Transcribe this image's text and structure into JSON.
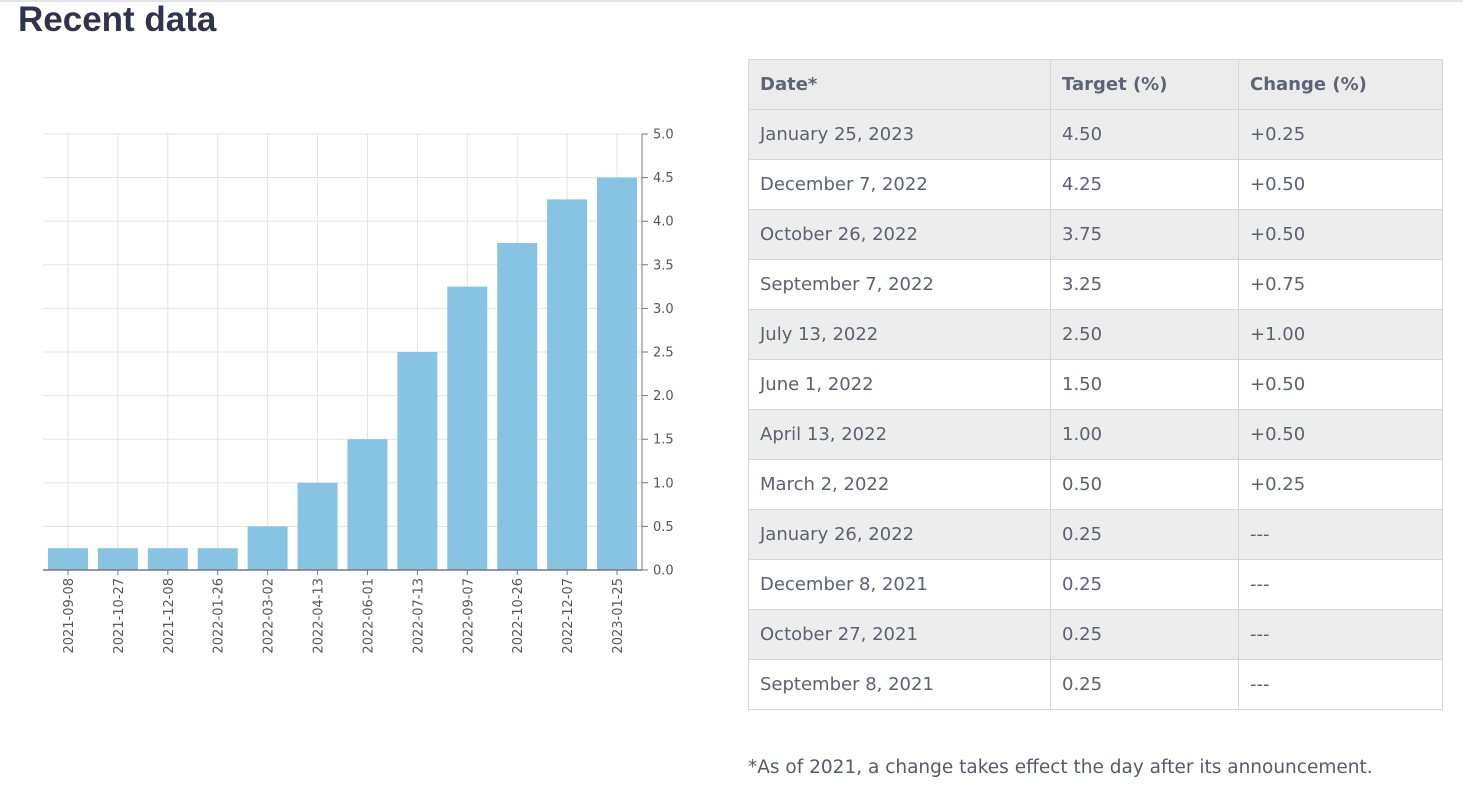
{
  "heading": "Recent data",
  "colors": {
    "bar": "#87c3e3",
    "grid": "#e3e3e3",
    "axis": "#777777",
    "heading": "#2e3450"
  },
  "table": {
    "headers": [
      "Date*",
      "Target (%)",
      "Change (%)"
    ],
    "rows": [
      [
        "January 25, 2023",
        "4.50",
        "+0.25"
      ],
      [
        "December 7, 2022",
        "4.25",
        "+0.50"
      ],
      [
        "October 26, 2022",
        "3.75",
        "+0.50"
      ],
      [
        "September 7, 2022",
        "3.25",
        "+0.75"
      ],
      [
        "July 13, 2022",
        "2.50",
        "+1.00"
      ],
      [
        "June 1, 2022",
        "1.50",
        "+0.50"
      ],
      [
        "April 13, 2022",
        "1.00",
        "+0.50"
      ],
      [
        "March 2, 2022",
        "0.50",
        "+0.25"
      ],
      [
        "January 26, 2022",
        "0.25",
        "---"
      ],
      [
        "December 8, 2021",
        "0.25",
        "---"
      ],
      [
        "October 27, 2021",
        "0.25",
        "---"
      ],
      [
        "September 8, 2021",
        "0.25",
        "---"
      ]
    ]
  },
  "footnote": "*As of 2021, a change takes effect the day after its announcement.",
  "chart_data": {
    "type": "bar",
    "categories": [
      "2021-09-08",
      "2021-10-27",
      "2021-12-08",
      "2022-01-26",
      "2022-03-02",
      "2022-04-13",
      "2022-06-01",
      "2022-07-13",
      "2022-09-07",
      "2022-10-26",
      "2022-12-07",
      "2023-01-25"
    ],
    "values": [
      0.25,
      0.25,
      0.25,
      0.25,
      0.5,
      1.0,
      1.5,
      2.5,
      3.25,
      3.75,
      4.25,
      4.5
    ],
    "title": "",
    "xlabel": "",
    "ylabel": "",
    "ylim": [
      0,
      5
    ],
    "y_ticks": [
      "0.0",
      "0.5",
      "1.0",
      "1.5",
      "2.0",
      "2.5",
      "3.0",
      "3.5",
      "4.0",
      "4.5",
      "5.0"
    ],
    "y_axis_side": "right",
    "grid": true
  }
}
